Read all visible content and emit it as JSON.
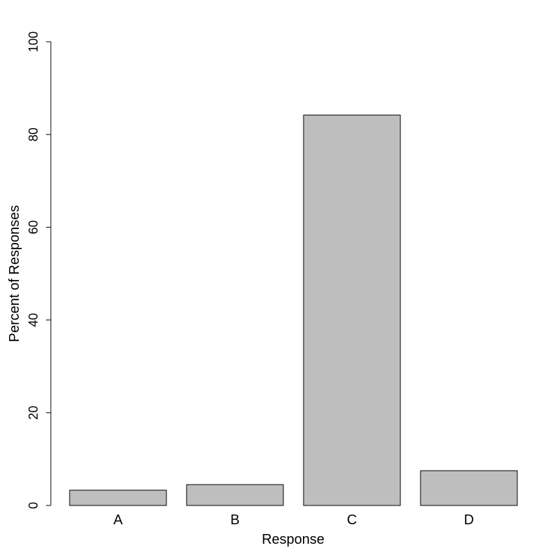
{
  "chart_data": {
    "type": "bar",
    "x_label": "Response",
    "y_label": "Percent of Responses",
    "categories": [
      "A",
      "B",
      "C",
      "D"
    ],
    "values": [
      3.3,
      4.5,
      84.2,
      7.5
    ],
    "color": "#bebebe",
    "ylim": [
      0,
      100
    ],
    "yticks": [
      0,
      20,
      40,
      60,
      80,
      100
    ],
    "grid": false
  }
}
